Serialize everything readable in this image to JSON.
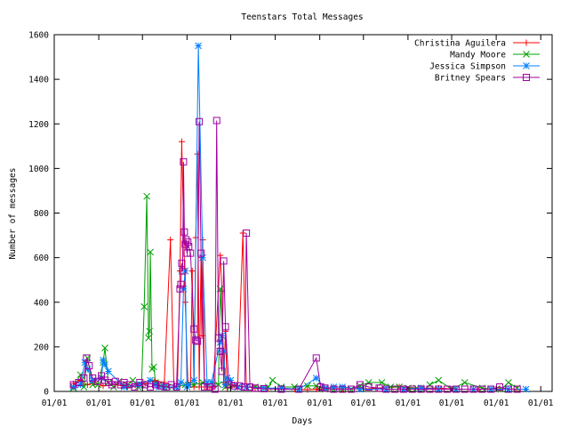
{
  "chart_data": {
    "type": "line",
    "title": "Teenstars Total Messages",
    "xlabel": "Days",
    "ylabel": "Number of messages",
    "ylim": [
      0,
      1600
    ],
    "xlim": [
      0,
      570
    ],
    "grid": false,
    "legend_position": "top-right",
    "y_ticks": [
      0,
      200,
      400,
      600,
      800,
      1000,
      1200,
      1400,
      1600
    ],
    "x_ticks": [
      {
        "x": 0,
        "label": "01/01"
      },
      {
        "x": 51,
        "label": "01/01"
      },
      {
        "x": 101,
        "label": "01/01"
      },
      {
        "x": 152,
        "label": "01/01"
      },
      {
        "x": 202,
        "label": "01/01"
      },
      {
        "x": 253,
        "label": "01/01"
      },
      {
        "x": 304,
        "label": "01/01"
      },
      {
        "x": 354,
        "label": "01/01"
      },
      {
        "x": 405,
        "label": "01/01"
      },
      {
        "x": 455,
        "label": "01/01"
      },
      {
        "x": 506,
        "label": "01/01"
      },
      {
        "x": 557,
        "label": "01/01"
      }
    ],
    "series": [
      {
        "name": "Christina Aguilera",
        "color": "#ff0000",
        "marker": "plus",
        "x": [
          22,
          30,
          38,
          46,
          56,
          70,
          84,
          95,
          104,
          115,
          126,
          133,
          137,
          141,
          144,
          146,
          150,
          153,
          156,
          158,
          160,
          162,
          164,
          166,
          168,
          169,
          170,
          172,
          174,
          176,
          178,
          180,
          182,
          190,
          192,
          194,
          196,
          198,
          202,
          206,
          210,
          216,
          220,
          230,
          245,
          260,
          275,
          290,
          300,
          310,
          330,
          350,
          370,
          395,
          420,
          440,
          460,
          485,
          510,
          530
        ],
        "y": [
          35,
          50,
          30,
          40,
          25,
          30,
          20,
          30,
          35,
          50,
          40,
          680,
          20,
          20,
          540,
          1120,
          400,
          40,
          30,
          540,
          20,
          690,
          1065,
          20,
          600,
          250,
          680,
          20,
          20,
          20,
          20,
          20,
          20,
          610,
          450,
          40,
          270,
          15,
          20,
          30,
          20,
          710,
          20,
          15,
          12,
          10,
          10,
          8,
          10,
          12,
          12,
          10,
          15,
          20,
          15,
          15,
          10,
          10,
          12,
          10
        ]
      },
      {
        "name": "Mandy Moore",
        "color": "#00a000",
        "marker": "x",
        "x": [
          22,
          30,
          34,
          38,
          44,
          50,
          56,
          58,
          62,
          68,
          74,
          80,
          84,
          90,
          96,
          100,
          103,
          106,
          108,
          109,
          110,
          112,
          114,
          116,
          120,
          130,
          140,
          150,
          160,
          170,
          180,
          188,
          190,
          196,
          200,
          210,
          220,
          230,
          245,
          250,
          260,
          275,
          290,
          300,
          310,
          320,
          330,
          340,
          350,
          360,
          375,
          385,
          395,
          405,
          415,
          425,
          430,
          440,
          455,
          470,
          490,
          500,
          512,
          520,
          530
        ],
        "y": [
          15,
          75,
          20,
          150,
          30,
          30,
          130,
          195,
          40,
          20,
          45,
          25,
          30,
          50,
          20,
          30,
          380,
          875,
          240,
          270,
          625,
          100,
          110,
          40,
          30,
          20,
          20,
          30,
          30,
          40,
          40,
          30,
          460,
          20,
          30,
          20,
          20,
          20,
          20,
          50,
          20,
          20,
          25,
          25,
          10,
          10,
          10,
          10,
          25,
          40,
          40,
          20,
          20,
          15,
          15,
          10,
          30,
          50,
          10,
          40,
          15,
          10,
          10,
          40,
          15
        ]
      },
      {
        "name": "Jessica Simpson",
        "color": "#0080ff",
        "marker": "star",
        "x": [
          22,
          30,
          35,
          38,
          44,
          54,
          56,
          58,
          62,
          80,
          96,
          110,
          116,
          120,
          126,
          140,
          145,
          148,
          150,
          152,
          154,
          160,
          165,
          170,
          175,
          180,
          190,
          192,
          194,
          196,
          198,
          202,
          210,
          220,
          240,
          260,
          280,
          300,
          310,
          320,
          330,
          350,
          380,
          400,
          420,
          440,
          460,
          480,
          500,
          520,
          540
        ],
        "y": [
          20,
          30,
          130,
          100,
          50,
          60,
          140,
          120,
          90,
          20,
          30,
          50,
          30,
          20,
          20,
          20,
          40,
          460,
          540,
          20,
          30,
          50,
          1550,
          600,
          40,
          40,
          220,
          250,
          180,
          30,
          60,
          50,
          20,
          20,
          15,
          15,
          10,
          60,
          15,
          20,
          20,
          10,
          10,
          10,
          15,
          10,
          10,
          10,
          10,
          10,
          10
        ]
      },
      {
        "name": "Britney Spears",
        "color": "#a000a0",
        "marker": "square",
        "x": [
          22,
          28,
          34,
          37,
          40,
          44,
          50,
          54,
          58,
          62,
          66,
          70,
          76,
          80,
          86,
          92,
          98,
          104,
          110,
          116,
          122,
          128,
          134,
          140,
          144,
          145,
          146,
          147,
          148,
          149,
          150,
          151,
          152,
          153,
          154,
          156,
          160,
          162,
          164,
          166,
          168,
          172,
          178,
          184,
          186,
          188,
          190,
          192,
          194,
          196,
          200,
          206,
          212,
          218,
          220,
          224,
          230,
          240,
          260,
          280,
          300,
          305,
          310,
          320,
          330,
          340,
          350,
          360,
          372,
          380,
          390,
          400,
          410,
          420,
          430,
          440,
          450,
          460,
          470,
          480,
          490,
          500,
          510,
          520,
          530
        ],
        "y": [
          30,
          40,
          60,
          150,
          115,
          60,
          45,
          70,
          50,
          40,
          30,
          45,
          30,
          40,
          30,
          20,
          40,
          30,
          20,
          30,
          25,
          20,
          30,
          20,
          460,
          480,
          575,
          540,
          1030,
          715,
          660,
          680,
          620,
          670,
          650,
          620,
          280,
          230,
          225,
          1210,
          620,
          20,
          20,
          10,
          1215,
          240,
          180,
          90,
          585,
          290,
          30,
          25,
          25,
          20,
          710,
          20,
          15,
          12,
          10,
          10,
          150,
          20,
          15,
          10,
          10,
          10,
          30,
          20,
          15,
          10,
          10,
          10,
          10,
          10,
          10,
          10,
          10,
          10,
          10,
          10,
          10,
          10,
          20,
          10,
          10
        ]
      }
    ]
  }
}
